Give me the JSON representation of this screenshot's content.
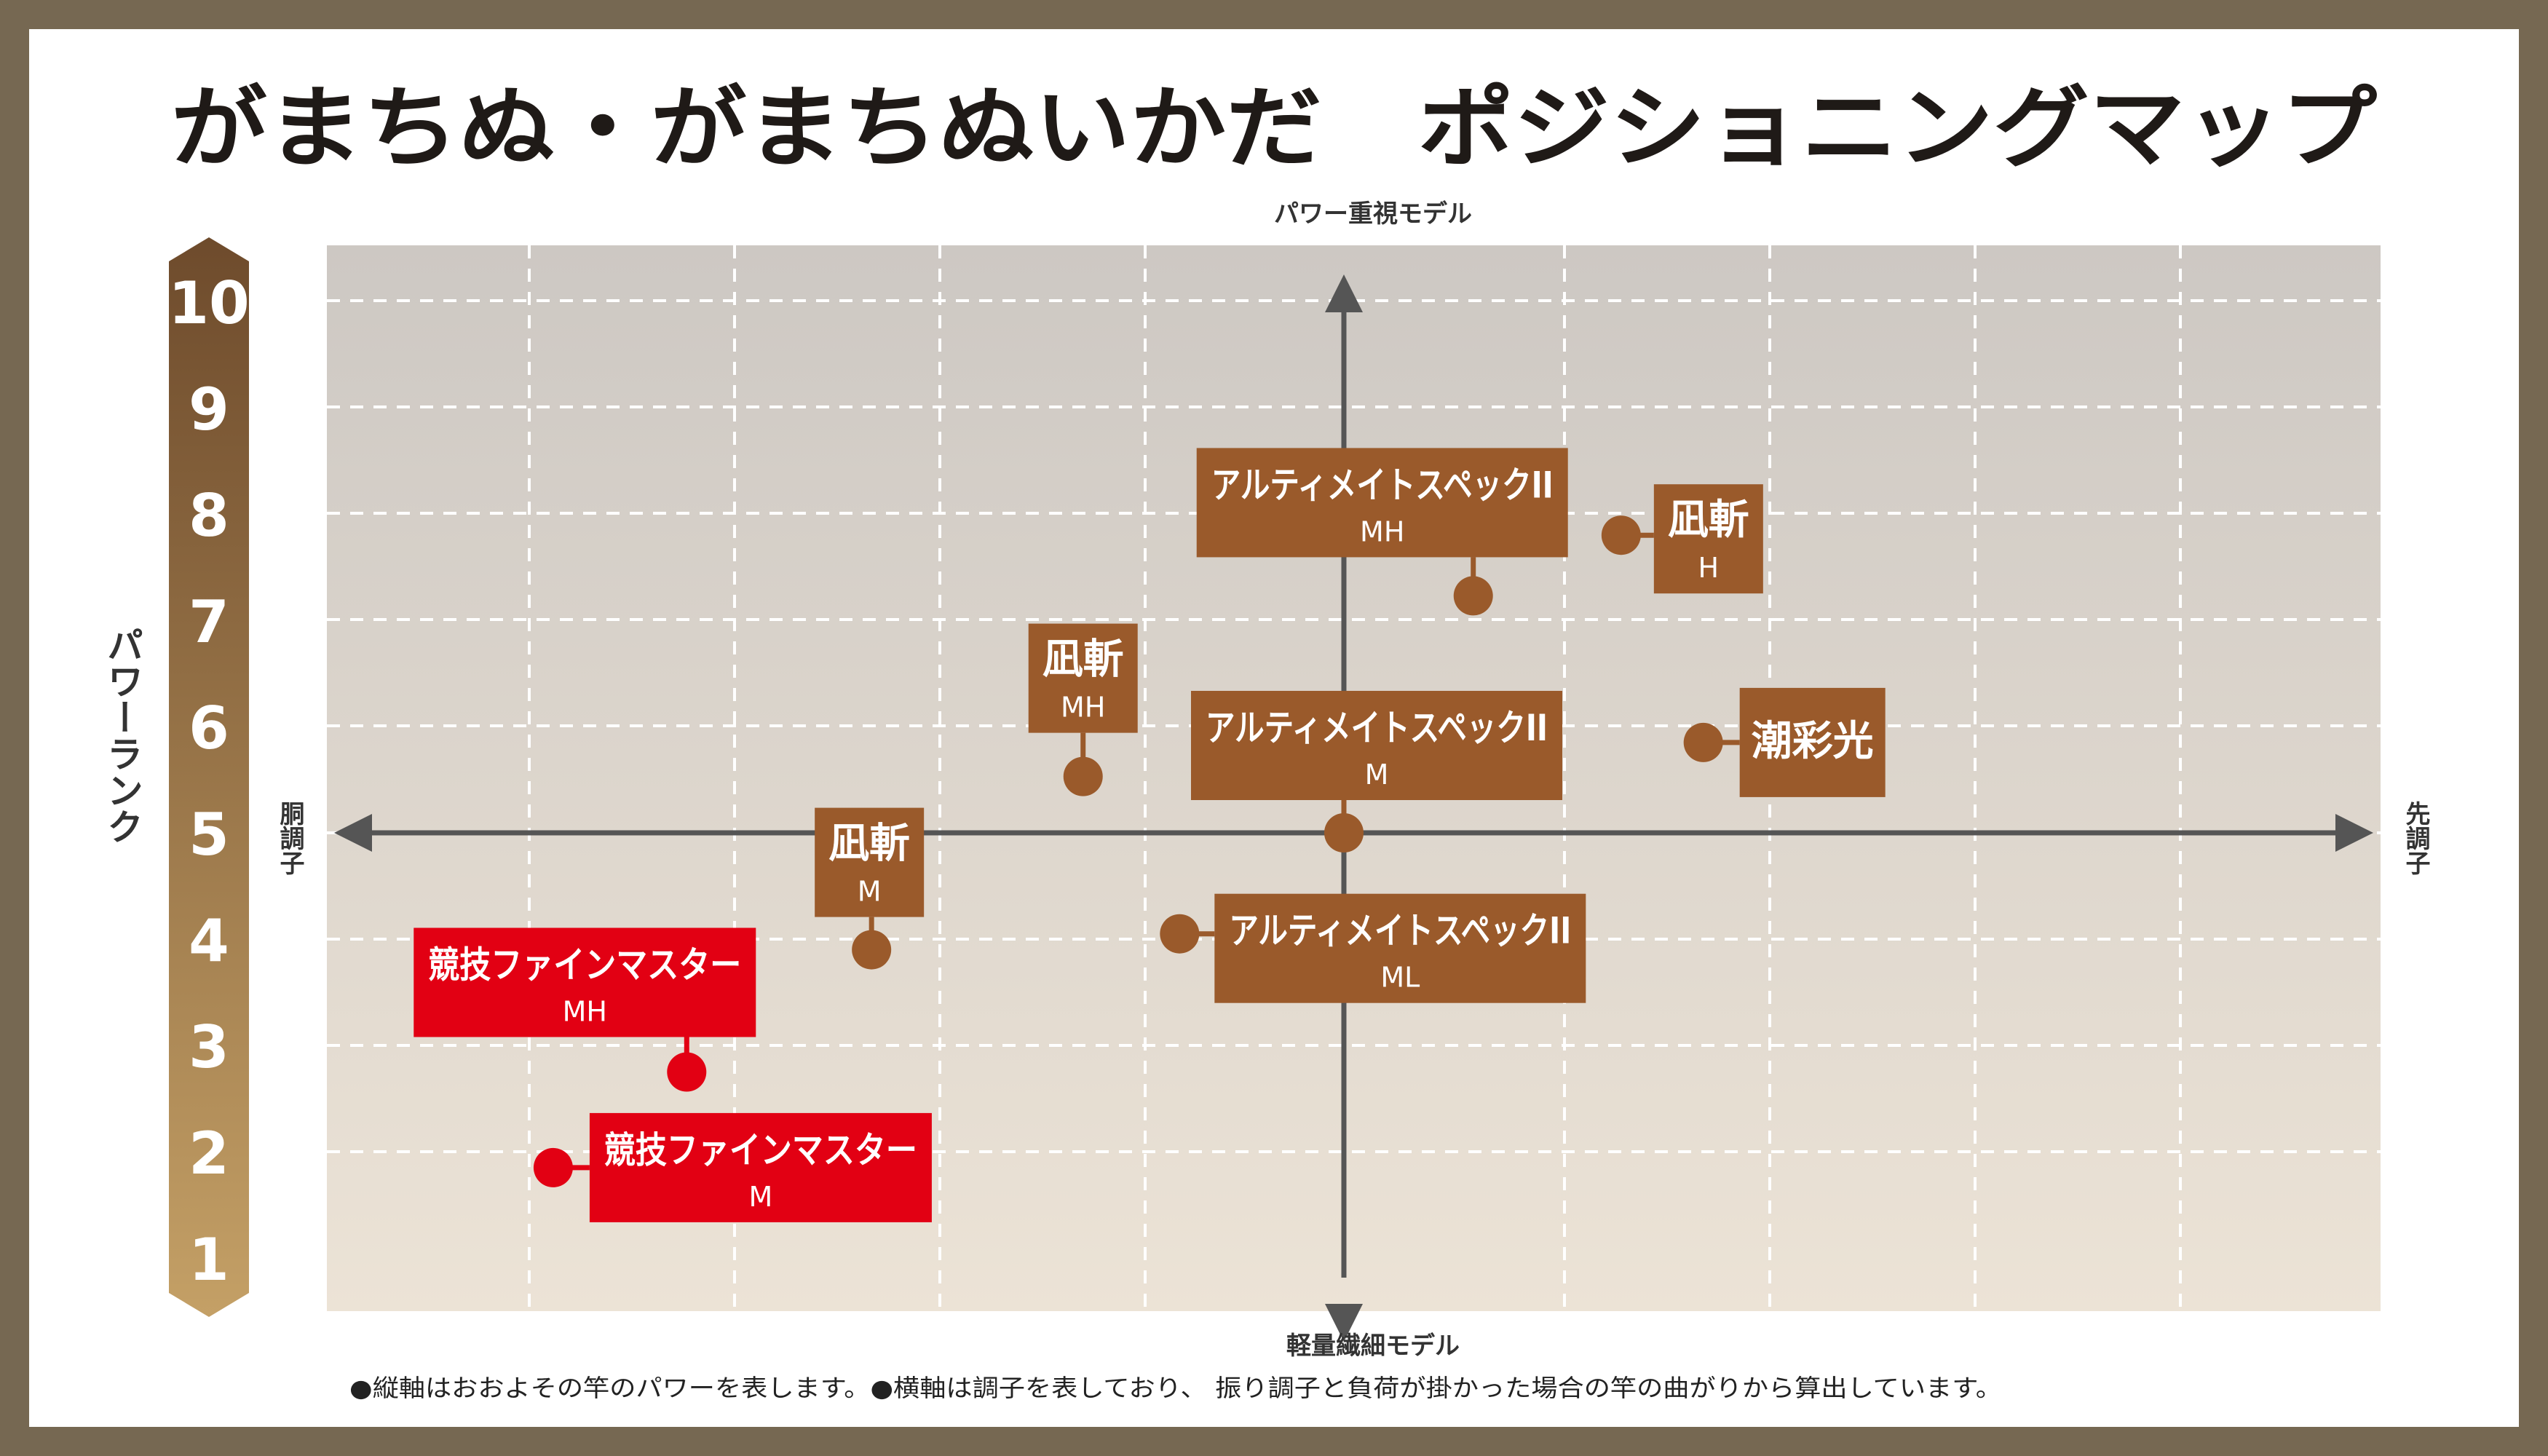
{
  "title": "がまちぬ・がまちぬいかだ　ポジショニングマップ",
  "footnote": "●縦軸はおおよその竿のパワーを表します。●横軸は調子を表しており、 振り調子と負荷が掛かった場合の竿の曲がりから算出しています。",
  "colors": {
    "frame": "#766852",
    "gama": "#9a5a2b",
    "kyogi": "#e20013",
    "axis": "#555555",
    "bg_top": "#cdc8c3",
    "bg_bottom": "#ece3d6",
    "bar_top": "#6e4b2c",
    "bar_bottom": "#c4a066"
  },
  "chart_data": {
    "type": "scatter",
    "title": "がまちぬ・がまちぬいかだ　ポジショニングマップ",
    "ylabel": "パワーランク",
    "ylim": [
      0.5,
      10.5
    ],
    "y_ticks": [
      "1",
      "2",
      "3",
      "4",
      "5",
      "6",
      "7",
      "8",
      "9",
      "10"
    ],
    "xlim": [
      -5,
      5
    ],
    "grid": true,
    "axis_top": "パワー重視モデル",
    "axis_bottom": "軽量繊細モデル",
    "axis_left": "胴調子",
    "axis_right": "先調子",
    "points": [
      {
        "name": "アルティメイトスペックII",
        "model": "MH",
        "x": 0.63,
        "y": 7.23,
        "color": "gama"
      },
      {
        "name": "凪斬",
        "model": "H",
        "x": 1.35,
        "y": 7.8,
        "color": "gama"
      },
      {
        "name": "凪斬",
        "model": "MH",
        "x": -1.27,
        "y": 5.53,
        "color": "gama"
      },
      {
        "name": "アルティメイトスペックII",
        "model": "M",
        "x": 0.0,
        "y": 5.0,
        "color": "gama"
      },
      {
        "name": "潮彩光",
        "model": "",
        "x": 1.75,
        "y": 5.85,
        "color": "gama"
      },
      {
        "name": "凪斬",
        "model": "M",
        "x": -2.3,
        "y": 3.9,
        "color": "gama"
      },
      {
        "name": "アルティメイトスペックII",
        "model": "ML",
        "x": -0.8,
        "y": 4.05,
        "color": "gama"
      },
      {
        "name": "競技ファインマスター",
        "model": "MH",
        "x": -3.2,
        "y": 2.75,
        "color": "kyogi"
      },
      {
        "name": "競技ファインマスター",
        "model": "M",
        "x": -3.85,
        "y": 1.85,
        "color": "kyogi"
      }
    ]
  }
}
